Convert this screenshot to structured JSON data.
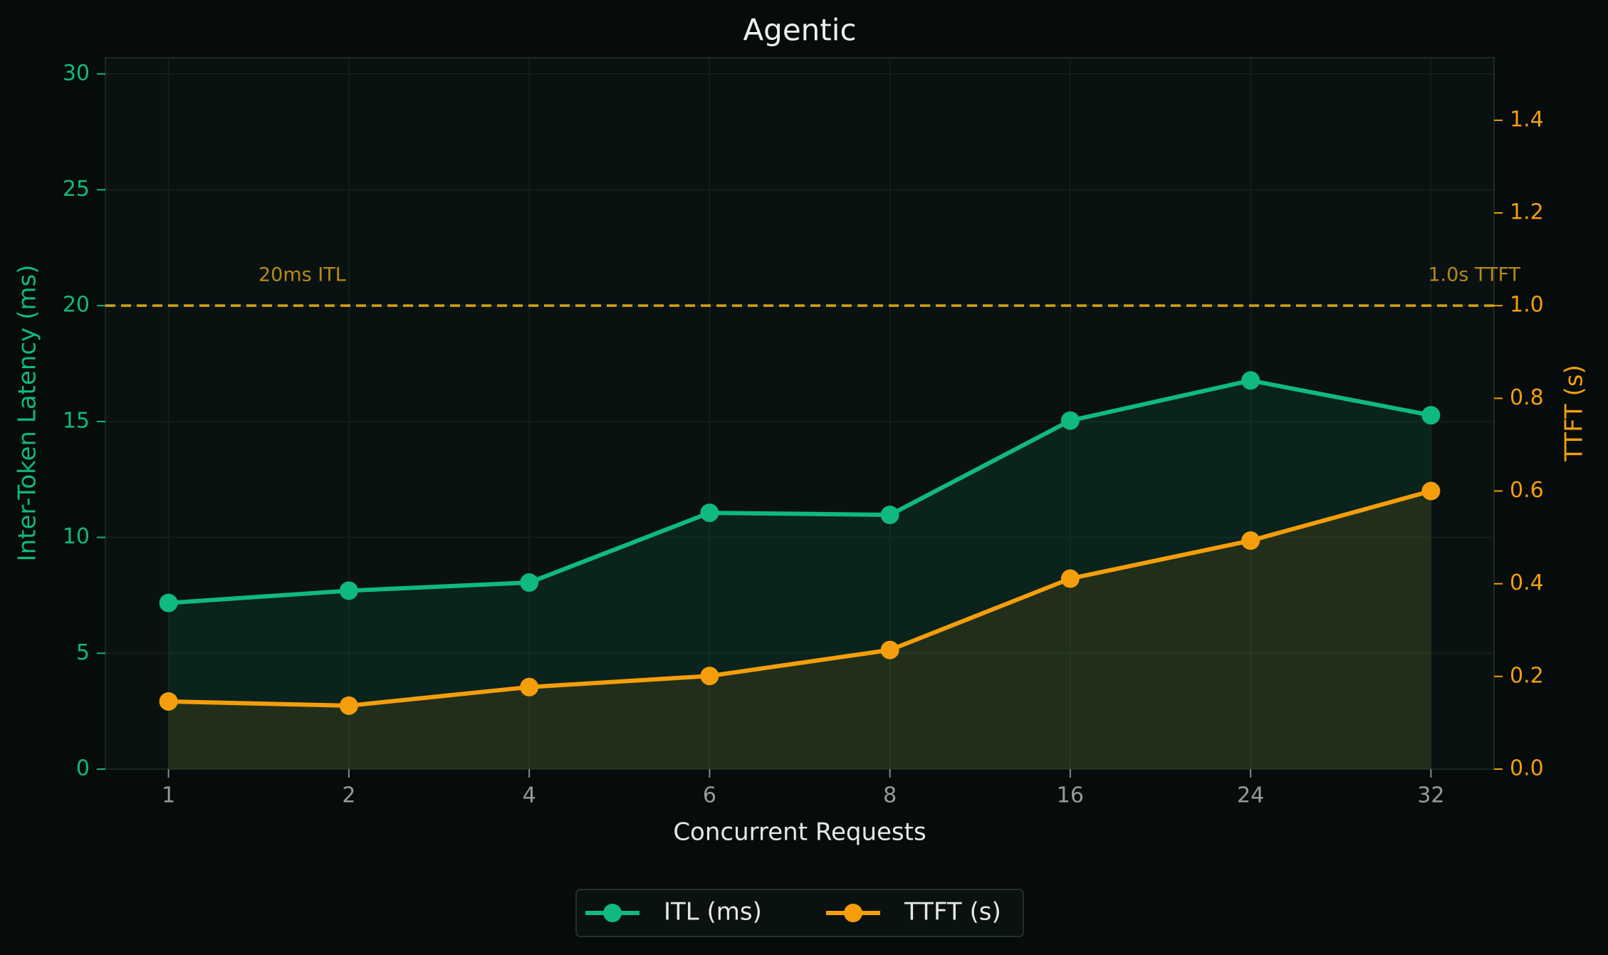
{
  "chart_data": {
    "type": "line",
    "title": "Agentic",
    "xlabel": "Concurrent Requests",
    "ylabel": "Inter-Token Latency (ms)",
    "y2label": "TTFT (s)",
    "categories": [
      "1",
      "2",
      "4",
      "6",
      "8",
      "16",
      "24",
      "32"
    ],
    "series": [
      {
        "name": "ITL (ms)",
        "color": "#10b981",
        "axis": "y",
        "values": [
          7.17,
          7.7,
          8.05,
          11.06,
          10.97,
          15.04,
          16.77,
          15.27
        ]
      },
      {
        "name": "TTFT (s)",
        "color": "#f59e0b",
        "axis": "y2",
        "values": [
          0.146,
          0.137,
          0.177,
          0.201,
          0.257,
          0.411,
          0.493,
          0.6
        ]
      }
    ],
    "ylim": [
      0,
      30.7
    ],
    "yticks": [
      0,
      5,
      10,
      15,
      20,
      25,
      30
    ],
    "y2lim": [
      0,
      1.535
    ],
    "y2ticks": [
      {
        "value": 0,
        "label": "0.0"
      },
      0.2,
      0.4,
      0.6,
      0.8,
      {
        "value": 1,
        "label": "1.0"
      },
      1.2,
      1.4
    ],
    "thresholds": [
      {
        "value": 20,
        "axis": "y",
        "label": "20ms ITL",
        "color": "#d4a017"
      },
      {
        "value": 1,
        "axis": "y2",
        "label": "1.0s TTFT",
        "color": "#d4a017"
      }
    ],
    "grid": true,
    "legend": "bottom"
  }
}
